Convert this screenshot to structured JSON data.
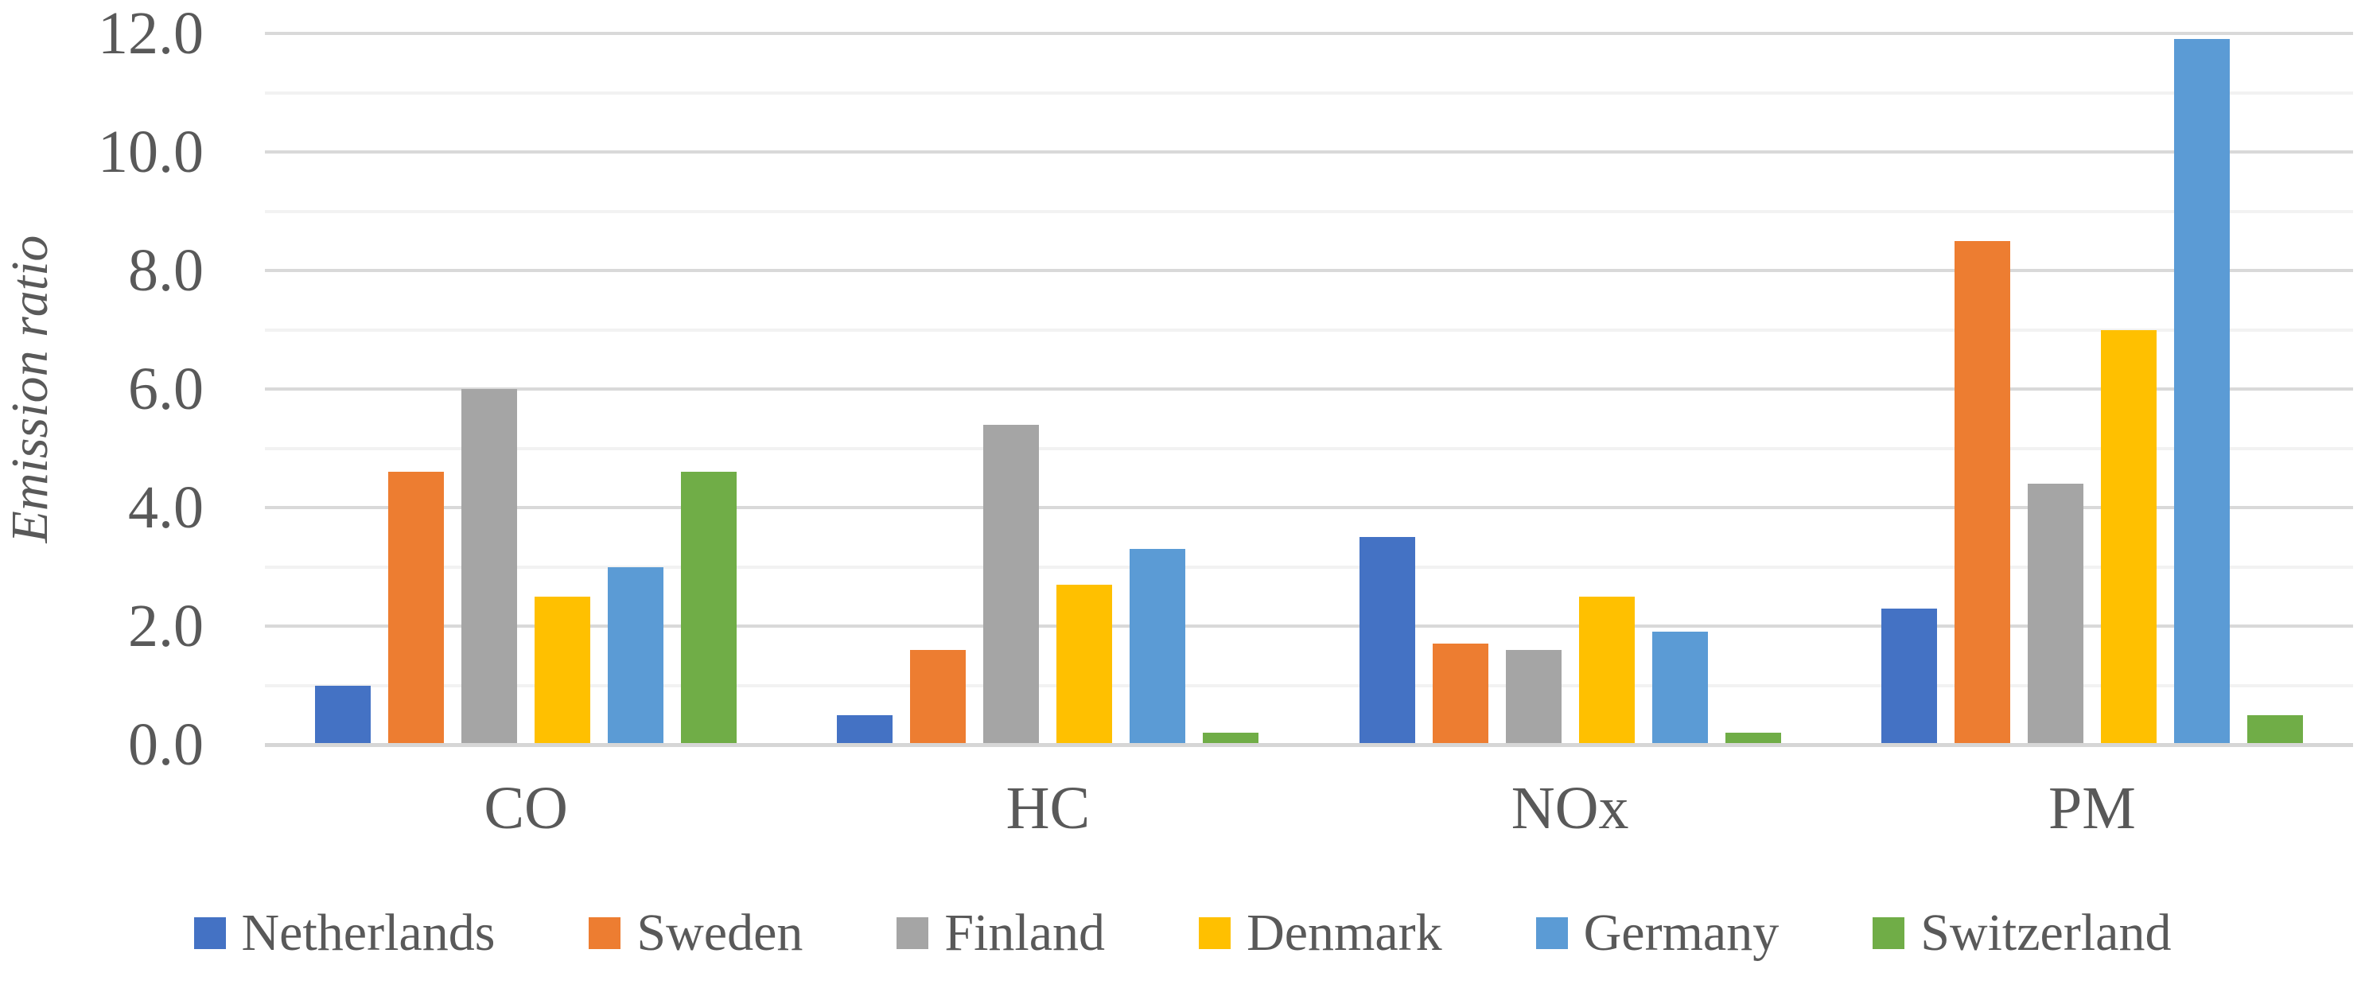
{
  "chart_data": {
    "type": "bar",
    "title": "",
    "xlabel": "",
    "ylabel": "Emission ratio",
    "categories": [
      "CO",
      "HC",
      "NOx",
      "PM"
    ],
    "series": [
      {
        "name": "Netherlands",
        "color": "#4472C4",
        "values": [
          1.0,
          0.5,
          3.5,
          2.3
        ]
      },
      {
        "name": "Sweden",
        "color": "#ED7D31",
        "values": [
          4.6,
          1.6,
          1.7,
          8.5
        ]
      },
      {
        "name": "Finland",
        "color": "#A5A5A5",
        "values": [
          6.0,
          5.4,
          1.6,
          4.4
        ]
      },
      {
        "name": "Denmark",
        "color": "#FFC000",
        "values": [
          2.5,
          2.7,
          2.5,
          7.0
        ]
      },
      {
        "name": "Germany",
        "color": "#5B9BD5",
        "values": [
          3.0,
          3.3,
          1.9,
          11.9
        ]
      },
      {
        "name": "Switzerland",
        "color": "#70AD47",
        "values": [
          4.6,
          0.2,
          0.2,
          0.5
        ]
      }
    ],
    "ylim": [
      0,
      12
    ],
    "ytick_labels": [
      "0.0",
      "2.0",
      "4.0",
      "6.0",
      "8.0",
      "10.0",
      "12.0"
    ],
    "ytick_values": [
      0,
      2,
      4,
      6,
      8,
      10,
      12
    ],
    "grid": {
      "major_every": 2,
      "minor_every": 1,
      "major_color": "#D9D9D9",
      "minor_color": "#F2F2F2"
    },
    "legend_position": "bottom",
    "axis_text_color": "#595959"
  }
}
